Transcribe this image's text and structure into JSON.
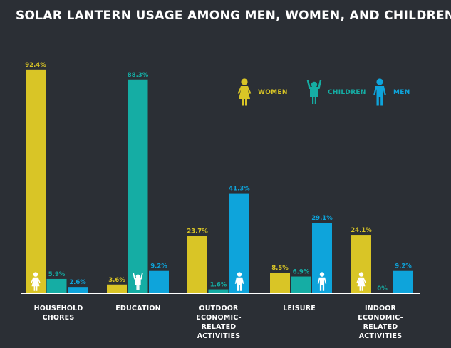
{
  "title": "SOLAR LANTERN USAGE AMONG MEN, WOMEN, AND CHILDREN",
  "colors": {
    "background": "#2b2f35",
    "women": "#d9c526",
    "children": "#15ada4",
    "men": "#0ea4db",
    "axis": "#ffffff"
  },
  "legend": [
    {
      "label": "WOMEN",
      "icon": "woman-icon"
    },
    {
      "label": "CHILDREN",
      "icon": "child-icon"
    },
    {
      "label": "MEN",
      "icon": "man-icon"
    }
  ],
  "chart_data": {
    "type": "bar",
    "title": "SOLAR LANTERN USAGE AMONG MEN, WOMEN, AND CHILDREN",
    "categories": [
      "HOUSEHOLD\nCHORES",
      "EDUCATION",
      "OUTDOOR\nECONOMIC-\nRELATED\nACTIVITIES",
      "LEISURE",
      "INDOOR\nECONOMIC-\nRELATED\nACTIVITIES"
    ],
    "series": [
      {
        "name": "WOMEN",
        "values": [
          92.4,
          3.6,
          23.7,
          8.5,
          24.1
        ],
        "labels": [
          "92.4%",
          "3.6%",
          "23.7%",
          "8.5%",
          "24.1%"
        ]
      },
      {
        "name": "CHILDREN",
        "values": [
          5.9,
          88.3,
          1.6,
          6.9,
          0
        ],
        "labels": [
          "5.9%",
          "88.3%",
          "1.6%",
          "6.9%",
          "0%"
        ]
      },
      {
        "name": "MEN",
        "values": [
          2.6,
          9.2,
          41.3,
          29.1,
          9.2
        ],
        "labels": [
          "2.6%",
          "9.2%",
          "41.3%",
          "29.1%",
          "9.2%"
        ]
      }
    ],
    "highest_group_icon": [
      "woman-icon",
      "child-icon",
      "man-icon",
      "man-icon",
      "woman-icon"
    ],
    "ylim": [
      0,
      100
    ],
    "xlabel": "",
    "ylabel": "",
    "grid": false,
    "legend_position": "top-right"
  }
}
